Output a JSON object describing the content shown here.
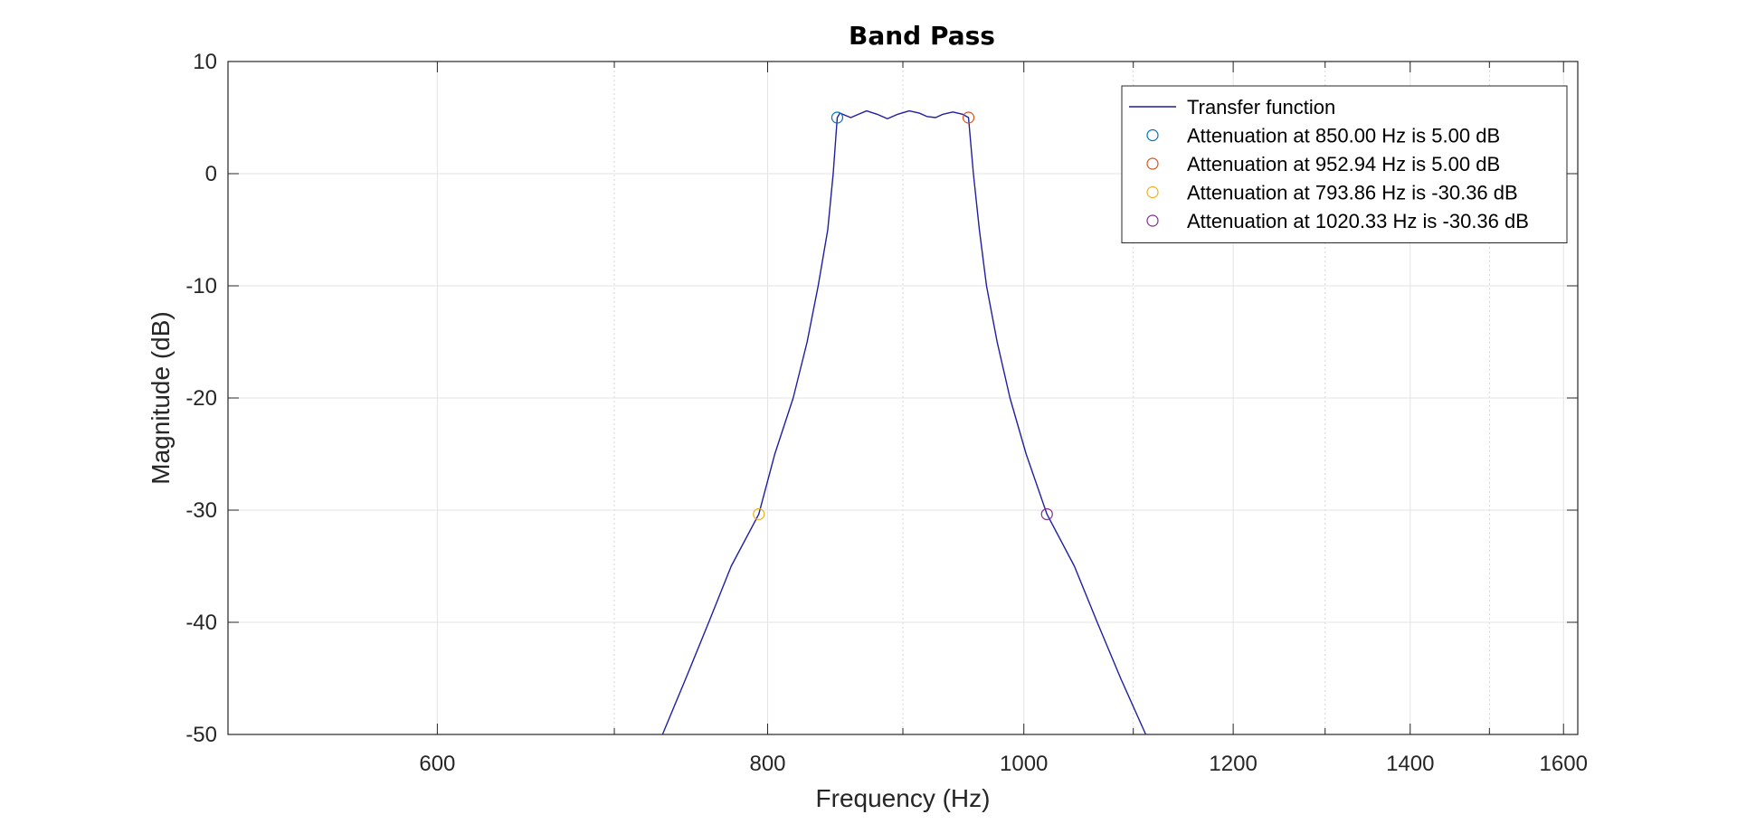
{
  "chart_data": {
    "type": "line",
    "title": "Band Pass",
    "xlabel": "Frequency (Hz)",
    "ylabel": "Magnitude (dB)",
    "x_scale": "log",
    "xlim": [
      500,
      1620
    ],
    "ylim": [
      -50,
      10
    ],
    "x_ticks": [
      600,
      800,
      1000,
      1200,
      1400,
      1600
    ],
    "y_ticks": [
      10,
      0,
      -10,
      -20,
      -30,
      -40,
      -50
    ],
    "grid": true,
    "legend_position": "top-right",
    "series": [
      {
        "name": "Transfer function",
        "color": "#1f1fa0",
        "style": "line",
        "points": [
          {
            "x": 730,
            "y": -50
          },
          {
            "x": 745,
            "y": -45
          },
          {
            "x": 760,
            "y": -40
          },
          {
            "x": 775,
            "y": -35
          },
          {
            "x": 793.86,
            "y": -30.36
          },
          {
            "x": 805,
            "y": -25
          },
          {
            "x": 818,
            "y": -20
          },
          {
            "x": 828,
            "y": -15
          },
          {
            "x": 836,
            "y": -10
          },
          {
            "x": 843,
            "y": -5
          },
          {
            "x": 847,
            "y": 0
          },
          {
            "x": 850,
            "y": 5.0
          },
          {
            "x": 852,
            "y": 5.4
          },
          {
            "x": 860,
            "y": 5.0
          },
          {
            "x": 866,
            "y": 5.3
          },
          {
            "x": 872,
            "y": 5.6
          },
          {
            "x": 880,
            "y": 5.3
          },
          {
            "x": 888,
            "y": 4.9
          },
          {
            "x": 896,
            "y": 5.3
          },
          {
            "x": 905,
            "y": 5.6
          },
          {
            "x": 913,
            "y": 5.4
          },
          {
            "x": 919,
            "y": 5.1
          },
          {
            "x": 926,
            "y": 5.0
          },
          {
            "x": 932,
            "y": 5.3
          },
          {
            "x": 940,
            "y": 5.5
          },
          {
            "x": 948,
            "y": 5.3
          },
          {
            "x": 952.94,
            "y": 5.0
          },
          {
            "x": 957,
            "y": 0
          },
          {
            "x": 962,
            "y": -5
          },
          {
            "x": 968,
            "y": -10
          },
          {
            "x": 977,
            "y": -15
          },
          {
            "x": 988,
            "y": -20
          },
          {
            "x": 1002,
            "y": -25
          },
          {
            "x": 1020.33,
            "y": -30.36
          },
          {
            "x": 1045,
            "y": -35
          },
          {
            "x": 1066,
            "y": -40
          },
          {
            "x": 1088,
            "y": -45
          },
          {
            "x": 1112,
            "y": -50
          }
        ]
      },
      {
        "name": "Attenuation at 850.00 Hz is 5.00 dB",
        "color": "#0072bd",
        "style": "marker",
        "points": [
          {
            "x": 850.0,
            "y": 5.0
          }
        ]
      },
      {
        "name": "Attenuation at 952.94 Hz is 5.00 dB",
        "color": "#d95319",
        "style": "marker",
        "points": [
          {
            "x": 952.94,
            "y": 5.0
          }
        ]
      },
      {
        "name": "Attenuation at 793.86 Hz is -30.36 dB",
        "color": "#edb120",
        "style": "marker",
        "points": [
          {
            "x": 793.86,
            "y": -30.36
          }
        ]
      },
      {
        "name": "Attenuation at 1020.33 Hz is -30.36 dB",
        "color": "#7e2f8e",
        "style": "marker",
        "points": [
          {
            "x": 1020.33,
            "y": -30.36
          }
        ]
      }
    ]
  }
}
